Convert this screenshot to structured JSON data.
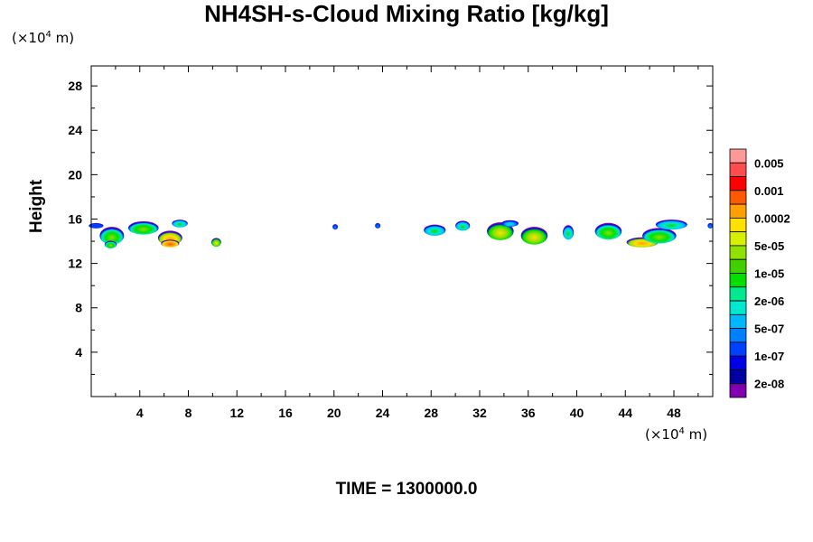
{
  "title": "NH4SH-s-Cloud Mixing Ratio [kg/kg]",
  "y_unit": {
    "prefix": "(×10",
    "exp": "4",
    "suffix": " m)"
  },
  "x_unit": {
    "prefix": "(×10",
    "exp": "4",
    "suffix": " m)"
  },
  "ylabel": "Height",
  "time_label": "TIME = 1300000.0",
  "chart_data": {
    "type": "heatmap",
    "title": "NH4SH-s-Cloud Mixing Ratio [kg/kg]",
    "xlabel": "",
    "ylabel": "Height",
    "x_unit": "×10^4 m",
    "y_unit": "×10^4 m",
    "xlim": [
      0,
      51.2
    ],
    "ylim": [
      0,
      29.8
    ],
    "x_ticks": [
      4,
      8,
      12,
      16,
      20,
      24,
      28,
      32,
      36,
      40,
      44,
      48
    ],
    "y_ticks": [
      4,
      8,
      12,
      16,
      20,
      24,
      28
    ],
    "colorbar": {
      "labels": [
        "0.005",
        "0.001",
        "0.0002",
        "5e-05",
        "1e-05",
        "2e-06",
        "5e-07",
        "1e-07",
        "2e-08"
      ],
      "colors": [
        "#ff9999",
        "#ff4d4d",
        "#ff0000",
        "#ff5a00",
        "#ffa000",
        "#ffe000",
        "#d8f000",
        "#90e000",
        "#40d000",
        "#00e000",
        "#00e890",
        "#00e8d0",
        "#00b8ff",
        "#0080ff",
        "#0040ff",
        "#0000e8",
        "#0000a0",
        "#8000b0"
      ]
    },
    "clouds": [
      {
        "x": 0.4,
        "y": 15.4,
        "w": 1.2,
        "h": 0.4,
        "level": 0.05
      },
      {
        "x": 1.7,
        "y": 14.5,
        "w": 2.0,
        "h": 1.6,
        "level": 0.45
      },
      {
        "x": 1.6,
        "y": 13.7,
        "w": 1.0,
        "h": 0.7,
        "level": 0.5
      },
      {
        "x": 4.3,
        "y": 15.2,
        "w": 2.5,
        "h": 1.2,
        "level": 0.45
      },
      {
        "x": 6.5,
        "y": 14.3,
        "w": 2.0,
        "h": 1.3,
        "level": 0.7
      },
      {
        "x": 6.5,
        "y": 13.8,
        "w": 1.5,
        "h": 0.7,
        "level": 0.85
      },
      {
        "x": 7.3,
        "y": 15.6,
        "w": 1.3,
        "h": 0.7,
        "level": 0.4
      },
      {
        "x": 10.3,
        "y": 13.9,
        "w": 0.8,
        "h": 0.8,
        "level": 0.6
      },
      {
        "x": 20.1,
        "y": 15.3,
        "w": 0.3,
        "h": 0.3,
        "level": 0.1
      },
      {
        "x": 23.6,
        "y": 15.4,
        "w": 0.3,
        "h": 0.3,
        "level": 0.1
      },
      {
        "x": 28.3,
        "y": 15.0,
        "w": 1.8,
        "h": 1.0,
        "level": 0.35
      },
      {
        "x": 30.6,
        "y": 15.4,
        "w": 1.2,
        "h": 0.9,
        "level": 0.35
      },
      {
        "x": 33.7,
        "y": 14.9,
        "w": 2.2,
        "h": 1.6,
        "level": 0.6
      },
      {
        "x": 34.5,
        "y": 15.6,
        "w": 1.4,
        "h": 0.6,
        "level": 0.3
      },
      {
        "x": 36.5,
        "y": 14.5,
        "w": 2.2,
        "h": 1.6,
        "level": 0.6
      },
      {
        "x": 39.3,
        "y": 14.8,
        "w": 0.9,
        "h": 1.3,
        "level": 0.4
      },
      {
        "x": 42.6,
        "y": 14.9,
        "w": 2.2,
        "h": 1.5,
        "level": 0.45
      },
      {
        "x": 45.4,
        "y": 13.9,
        "w": 2.6,
        "h": 0.9,
        "level": 0.75
      },
      {
        "x": 46.8,
        "y": 14.5,
        "w": 2.8,
        "h": 1.4,
        "level": 0.55
      },
      {
        "x": 47.8,
        "y": 15.5,
        "w": 2.6,
        "h": 0.9,
        "level": 0.4
      },
      {
        "x": 51.0,
        "y": 15.4,
        "w": 0.3,
        "h": 0.3,
        "level": 0.1
      }
    ]
  }
}
